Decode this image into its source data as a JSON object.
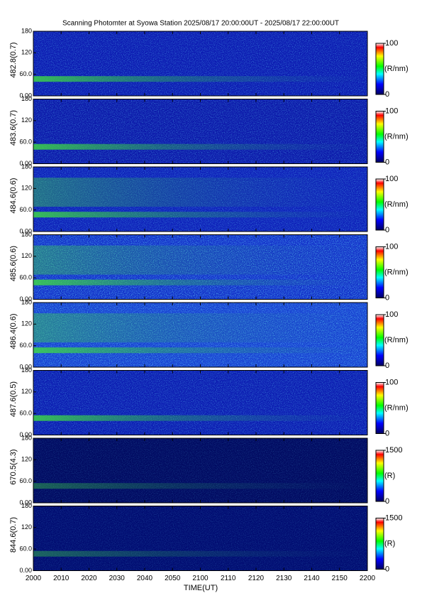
{
  "title": "Scanning Photomter at Syowa Station 2025/08/17 20:00:00UT - 2025/08/17 22:00:00UT",
  "xlabel": "TIME(UT)",
  "xticks": [
    "2000",
    "2010",
    "2020",
    "2030",
    "2040",
    "2050",
    "2100",
    "2110",
    "2120",
    "2130",
    "2140",
    "2150",
    "2200"
  ],
  "panels": [
    {
      "ylabel": "482.8(0.7)",
      "yticks": [
        {
          "value": 0,
          "label": "0.00"
        },
        {
          "value": 60,
          "label": "60.0"
        },
        120,
        180
      ],
      "colorbar": {
        "ticks": [
          0,
          100
        ],
        "label": "(R/nm)"
      }
    },
    {
      "ylabel": "483.6(0.7)",
      "yticks": [
        {
          "value": 0,
          "label": "0.00"
        },
        {
          "value": 60,
          "label": "60.0"
        },
        120,
        180
      ],
      "colorbar": {
        "ticks": [
          0,
          100
        ],
        "label": "(R/nm)"
      }
    },
    {
      "ylabel": "484.6(0.6)",
      "yticks": [
        {
          "value": 0,
          "label": "0.00"
        },
        {
          "value": 60,
          "label": "60.0"
        },
        120,
        180
      ],
      "colorbar": {
        "ticks": [
          0,
          100
        ],
        "label": "(R/nm)"
      }
    },
    {
      "ylabel": "485.6(0.6)",
      "yticks": [
        {
          "value": 0,
          "label": "0.00"
        },
        {
          "value": 60,
          "label": "60.0"
        },
        120,
        180
      ],
      "colorbar": {
        "ticks": [
          0,
          100
        ],
        "label": "(R/nm)"
      }
    },
    {
      "ylabel": "486.4(0.6)",
      "yticks": [
        {
          "value": 0,
          "label": "0.00"
        },
        {
          "value": 60,
          "label": "60.0"
        },
        120,
        180
      ],
      "colorbar": {
        "ticks": [
          0,
          100
        ],
        "label": "(R/nm)"
      }
    },
    {
      "ylabel": "487.6(0.5)",
      "yticks": [
        {
          "value": 0,
          "label": "0.00"
        },
        {
          "value": 60,
          "label": "60.0"
        },
        120,
        180
      ],
      "colorbar": {
        "ticks": [
          0,
          100
        ],
        "label": "(R/nm)"
      }
    },
    {
      "ylabel": "670.5(4.3)",
      "yticks": [
        {
          "value": 0,
          "label": "0.00"
        },
        {
          "value": 60,
          "label": "60.0"
        },
        120,
        180
      ],
      "colorbar": {
        "ticks": [
          0,
          1500
        ],
        "label": "(R)"
      }
    },
    {
      "ylabel": "844.6(0.7)",
      "yticks": [
        {
          "value": 0,
          "label": "0.00"
        },
        {
          "value": 60,
          "label": "60.0"
        },
        120,
        180
      ],
      "colorbar": {
        "ticks": [
          0,
          1500
        ],
        "label": "(R)"
      }
    }
  ]
}
